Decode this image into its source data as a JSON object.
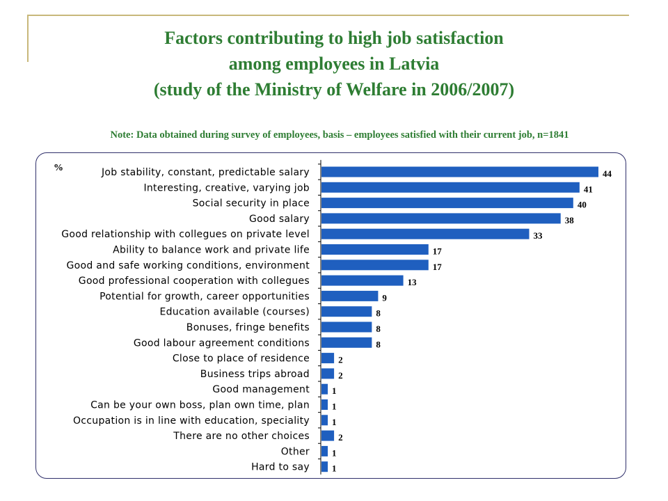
{
  "title_lines": [
    "Factors contributing to high job satisfaction",
    "among employees in Latvia",
    "(study of the Ministry of Welfare in 2006/2007)"
  ],
  "note": "Note: Data obtained during survey of employees, basis – employees satisfied with their current job, n=1841",
  "chart_data": {
    "type": "bar",
    "orientation": "horizontal",
    "unit_label": "%",
    "categories": [
      "Job stability, constant, predictable salary",
      "Interesting, creative, varying job",
      "Social security in place",
      "Good salary",
      "Good relationship with collegues on private level",
      "Ability to balance work and private life",
      "Good and safe working conditions, environment",
      "Good professional cooperation with collegues",
      "Potential for growth, career opportunities",
      "Education available (courses)",
      "Bonuses, fringe benefits",
      "Good labour agreement conditions",
      "Close to place of residence",
      "Business trips abroad",
      "Good management",
      "Can be your own boss, plan own time, plan",
      "Occupation is in line with education, speciality",
      "There are no other choices",
      "Other",
      "Hard to say"
    ],
    "values": [
      44,
      41,
      40,
      38,
      33,
      17,
      17,
      13,
      9,
      8,
      8,
      8,
      2,
      2,
      1,
      1,
      1,
      2,
      1,
      1
    ],
    "bar_color": "#1f5fbf",
    "xlim": [
      0,
      44
    ],
    "grid": false,
    "legend": "none"
  }
}
